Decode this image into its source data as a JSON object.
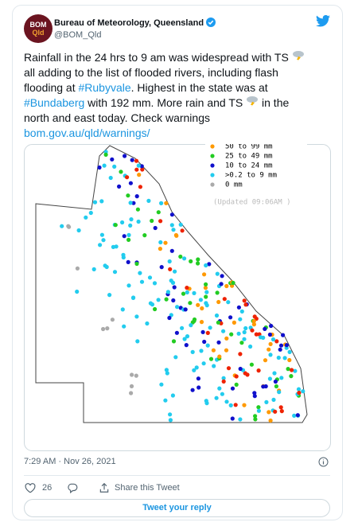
{
  "author": {
    "avatar_text": [
      "BOM",
      "Qld"
    ],
    "name": "Bureau of Meteorology, Queensland",
    "handle": "@BOM_Qld"
  },
  "tweet": {
    "lines": [
      [
        "Rainfall in the 24 hrs to 9 am was widespread with TS"
      ],
      [
        "all adding to the list of flooded rivers, including flash"
      ],
      [
        "flooding at ",
        "#Rubyvale",
        ". Highest in the state was at"
      ],
      [
        "#Bundaberg",
        " with 192 mm. More rain and TS",
        "in the"
      ],
      [
        "north and east today. Check warnings"
      ],
      [
        "bom.gov.au/qld/warnings/"
      ]
    ]
  },
  "map": {
    "legend": [
      "50 to 99 mm",
      "25 to 49 mm",
      "10 to 24 mm",
      ">0.2 to 9 mm",
      "0 mm"
    ],
    "updated": "(Updated 09:06AM  )"
  },
  "footer": {
    "timestamp": "7:29 AM · Nov 26, 2021",
    "likes": "26",
    "share": "Share this Tweet",
    "reply_button": "Tweet your reply"
  }
}
